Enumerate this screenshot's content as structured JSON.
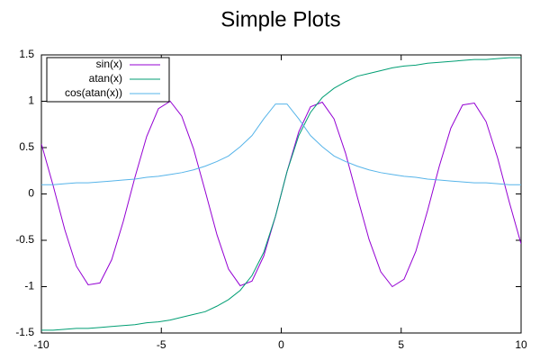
{
  "chart_data": {
    "type": "line",
    "title": "Simple Plots",
    "x": [
      -10,
      -9.51,
      -9.02,
      -8.54,
      -8.05,
      -7.56,
      -7.07,
      -6.59,
      -6.1,
      -5.61,
      -5.12,
      -4.63,
      -4.15,
      -3.66,
      -3.17,
      -2.68,
      -2.2,
      -1.71,
      -1.22,
      -0.73,
      -0.24,
      0.24,
      0.73,
      1.22,
      1.71,
      2.2,
      2.68,
      3.17,
      3.66,
      4.15,
      4.63,
      5.12,
      5.61,
      6.1,
      6.59,
      7.07,
      7.56,
      8.05,
      8.54,
      9.02,
      9.51,
      10
    ],
    "series": [
      {
        "name": "sin(x)",
        "color": "#9400d3",
        "values": [
          0.54,
          0.09,
          -0.39,
          -0.78,
          -0.98,
          -0.96,
          -0.71,
          -0.3,
          0.18,
          0.62,
          0.92,
          1,
          0.84,
          0.49,
          0.03,
          -0.44,
          -0.81,
          -0.99,
          -0.94,
          -0.67,
          -0.24,
          0.24,
          0.67,
          0.94,
          0.99,
          0.81,
          0.44,
          -0.03,
          -0.49,
          -0.84,
          -1,
          -0.92,
          -0.62,
          -0.18,
          0.3,
          0.71,
          0.96,
          0.98,
          0.78,
          0.39,
          -0.09,
          -0.54
        ]
      },
      {
        "name": "atan(x)",
        "color": "#009e73",
        "values": [
          -1.47,
          -1.47,
          -1.46,
          -1.45,
          -1.45,
          -1.44,
          -1.43,
          -1.42,
          -1.41,
          -1.39,
          -1.38,
          -1.36,
          -1.33,
          -1.3,
          -1.27,
          -1.21,
          -1.14,
          -1.04,
          -0.88,
          -0.63,
          -0.24,
          0.24,
          0.63,
          0.88,
          1.04,
          1.14,
          1.21,
          1.27,
          1.3,
          1.33,
          1.36,
          1.38,
          1.39,
          1.41,
          1.42,
          1.43,
          1.44,
          1.45,
          1.45,
          1.46,
          1.47,
          1.47
        ]
      },
      {
        "name": "cos(atan(x))",
        "color": "#56b4e9",
        "values": [
          0.1,
          0.1,
          0.11,
          0.12,
          0.12,
          0.13,
          0.14,
          0.15,
          0.16,
          0.18,
          0.19,
          0.21,
          0.23,
          0.26,
          0.3,
          0.35,
          0.41,
          0.51,
          0.63,
          0.81,
          0.97,
          0.97,
          0.81,
          0.63,
          0.51,
          0.41,
          0.35,
          0.3,
          0.26,
          0.23,
          0.21,
          0.19,
          0.18,
          0.16,
          0.15,
          0.14,
          0.13,
          0.12,
          0.12,
          0.11,
          0.1,
          0.1
        ]
      }
    ],
    "xlim": [
      -10,
      10
    ],
    "xticks": [
      -10,
      -5,
      0,
      5,
      10
    ],
    "ylim": [
      -1.5,
      1.5
    ],
    "yticks": [
      -1.5,
      -1,
      -0.5,
      0,
      0.5,
      1,
      1.5
    ],
    "legend": "top left"
  }
}
